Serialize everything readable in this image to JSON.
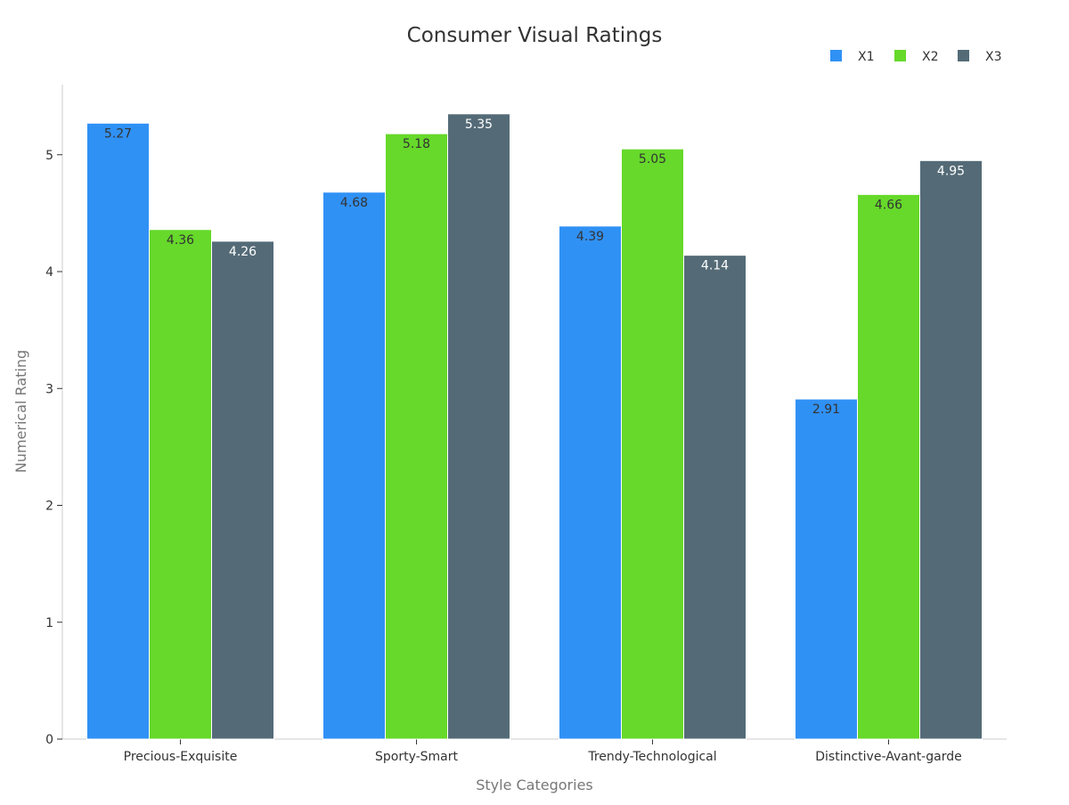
{
  "chart_data": {
    "type": "bar",
    "title": "Consumer Visual Ratings",
    "xlabel": "Style Categories",
    "ylabel": "Numerical Rating",
    "categories": [
      "Precious-Exquisite",
      "Sporty-Smart",
      "Trendy-Technological",
      "Distinctive-Avant-garde"
    ],
    "series": [
      {
        "name": "X1",
        "color": "#3091f5",
        "values": [
          5.27,
          4.68,
          4.39,
          2.91
        ]
      },
      {
        "name": "X2",
        "color": "#66d92a",
        "values": [
          4.36,
          5.18,
          5.05,
          4.66
        ]
      },
      {
        "name": "X3",
        "color": "#546b77",
        "values": [
          4.26,
          5.35,
          4.14,
          4.95
        ]
      }
    ],
    "ylim": [
      0,
      5.6
    ],
    "yticks": [
      0,
      1,
      2,
      3,
      4,
      5
    ],
    "grid": false,
    "legend_position": "top-right",
    "data_labels": true
  }
}
